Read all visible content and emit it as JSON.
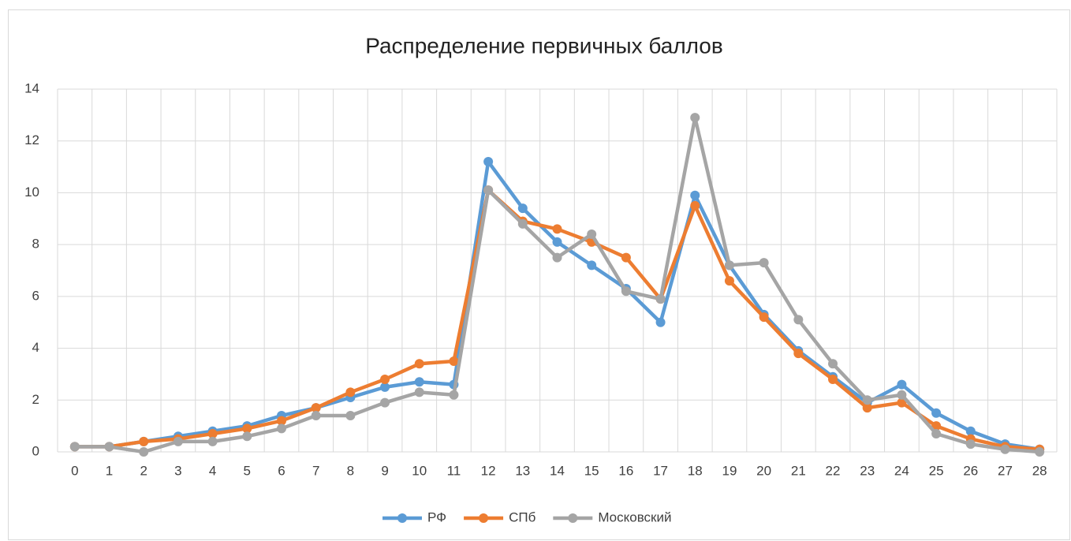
{
  "chart_data": {
    "type": "line",
    "title": "Распределение первичных баллов",
    "categories": [
      "0",
      "1",
      "2",
      "3",
      "4",
      "5",
      "6",
      "7",
      "8",
      "9",
      "10",
      "11",
      "12",
      "13",
      "14",
      "15",
      "16",
      "17",
      "18",
      "19",
      "20",
      "21",
      "22",
      "23",
      "24",
      "25",
      "26",
      "27",
      "28"
    ],
    "series": [
      {
        "name": "РФ",
        "color": "#5b9bd5",
        "values": [
          0.2,
          0.2,
          0.4,
          0.6,
          0.8,
          1.0,
          1.4,
          1.7,
          2.1,
          2.5,
          2.7,
          2.6,
          11.2,
          9.4,
          8.1,
          7.2,
          6.3,
          5.0,
          9.9,
          7.2,
          5.3,
          3.9,
          2.9,
          1.9,
          2.6,
          1.5,
          0.8,
          0.3,
          0.1
        ]
      },
      {
        "name": "СПб",
        "color": "#ed7d31",
        "values": [
          0.2,
          0.2,
          0.4,
          0.5,
          0.7,
          0.9,
          1.2,
          1.7,
          2.3,
          2.8,
          3.4,
          3.5,
          10.1,
          8.9,
          8.6,
          8.1,
          7.5,
          5.9,
          9.5,
          6.6,
          5.2,
          3.8,
          2.8,
          1.7,
          1.9,
          1.0,
          0.5,
          0.2,
          0.1
        ]
      },
      {
        "name": "Московский",
        "color": "#a5a5a5",
        "values": [
          0.2,
          0.2,
          0.0,
          0.4,
          0.4,
          0.6,
          0.9,
          1.4,
          1.4,
          1.9,
          2.3,
          2.2,
          10.1,
          8.8,
          7.5,
          8.4,
          6.2,
          5.9,
          12.9,
          7.2,
          7.3,
          5.1,
          3.4,
          2.0,
          2.2,
          0.7,
          0.3,
          0.1,
          0.0
        ]
      }
    ],
    "ylim": [
      0,
      14
    ],
    "yticks": [
      0,
      2,
      4,
      6,
      8,
      10,
      12,
      14
    ],
    "grid": true,
    "legend": "bottom"
  }
}
